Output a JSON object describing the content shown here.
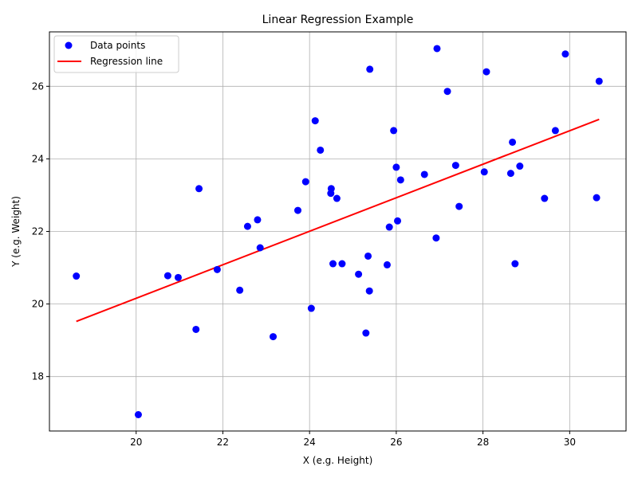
{
  "chart_data": {
    "type": "scatter",
    "title": "Linear Regression Example",
    "xlabel": "X (e.g. Height)",
    "ylabel": "Y (e.g. Weight)",
    "xlim": [
      18.0,
      31.3
    ],
    "ylim": [
      16.5,
      27.5
    ],
    "xticks": [
      20,
      22,
      24,
      26,
      28,
      30
    ],
    "yticks": [
      18,
      20,
      22,
      24,
      26
    ],
    "grid": true,
    "legend_position": "top-left",
    "series": [
      {
        "name": "Data points",
        "kind": "scatter",
        "color": "#0000ff",
        "points": [
          [
            18.62,
            20.77
          ],
          [
            20.05,
            16.95
          ],
          [
            20.73,
            20.78
          ],
          [
            20.97,
            20.73
          ],
          [
            21.38,
            19.3
          ],
          [
            21.45,
            23.18
          ],
          [
            21.87,
            20.95
          ],
          [
            22.39,
            20.38
          ],
          [
            22.57,
            22.14
          ],
          [
            22.8,
            22.32
          ],
          [
            22.86,
            21.55
          ],
          [
            23.16,
            19.1
          ],
          [
            23.73,
            22.58
          ],
          [
            23.91,
            23.37
          ],
          [
            24.04,
            19.88
          ],
          [
            24.13,
            25.05
          ],
          [
            24.25,
            24.24
          ],
          [
            24.49,
            23.05
          ],
          [
            24.5,
            23.18
          ],
          [
            24.54,
            21.11
          ],
          [
            24.63,
            22.91
          ],
          [
            24.75,
            21.11
          ],
          [
            25.13,
            20.82
          ],
          [
            25.3,
            19.2
          ],
          [
            25.35,
            21.32
          ],
          [
            25.38,
            20.36
          ],
          [
            25.39,
            26.47
          ],
          [
            25.79,
            21.08
          ],
          [
            25.84,
            22.12
          ],
          [
            25.94,
            24.78
          ],
          [
            26.0,
            23.77
          ],
          [
            26.03,
            22.29
          ],
          [
            26.1,
            23.42
          ],
          [
            26.65,
            23.57
          ],
          [
            26.92,
            21.82
          ],
          [
            26.94,
            27.04
          ],
          [
            27.18,
            25.86
          ],
          [
            27.37,
            23.82
          ],
          [
            27.45,
            22.69
          ],
          [
            28.03,
            23.64
          ],
          [
            28.08,
            26.4
          ],
          [
            28.64,
            23.6
          ],
          [
            28.68,
            24.46
          ],
          [
            28.74,
            21.11
          ],
          [
            28.85,
            23.8
          ],
          [
            29.42,
            22.91
          ],
          [
            29.67,
            24.78
          ],
          [
            29.9,
            26.89
          ],
          [
            30.62,
            22.93
          ],
          [
            30.68,
            26.14
          ]
        ]
      },
      {
        "name": "Regression line",
        "kind": "line",
        "color": "#ff0000",
        "points": [
          [
            18.62,
            19.52
          ],
          [
            30.68,
            25.09
          ]
        ]
      }
    ]
  }
}
